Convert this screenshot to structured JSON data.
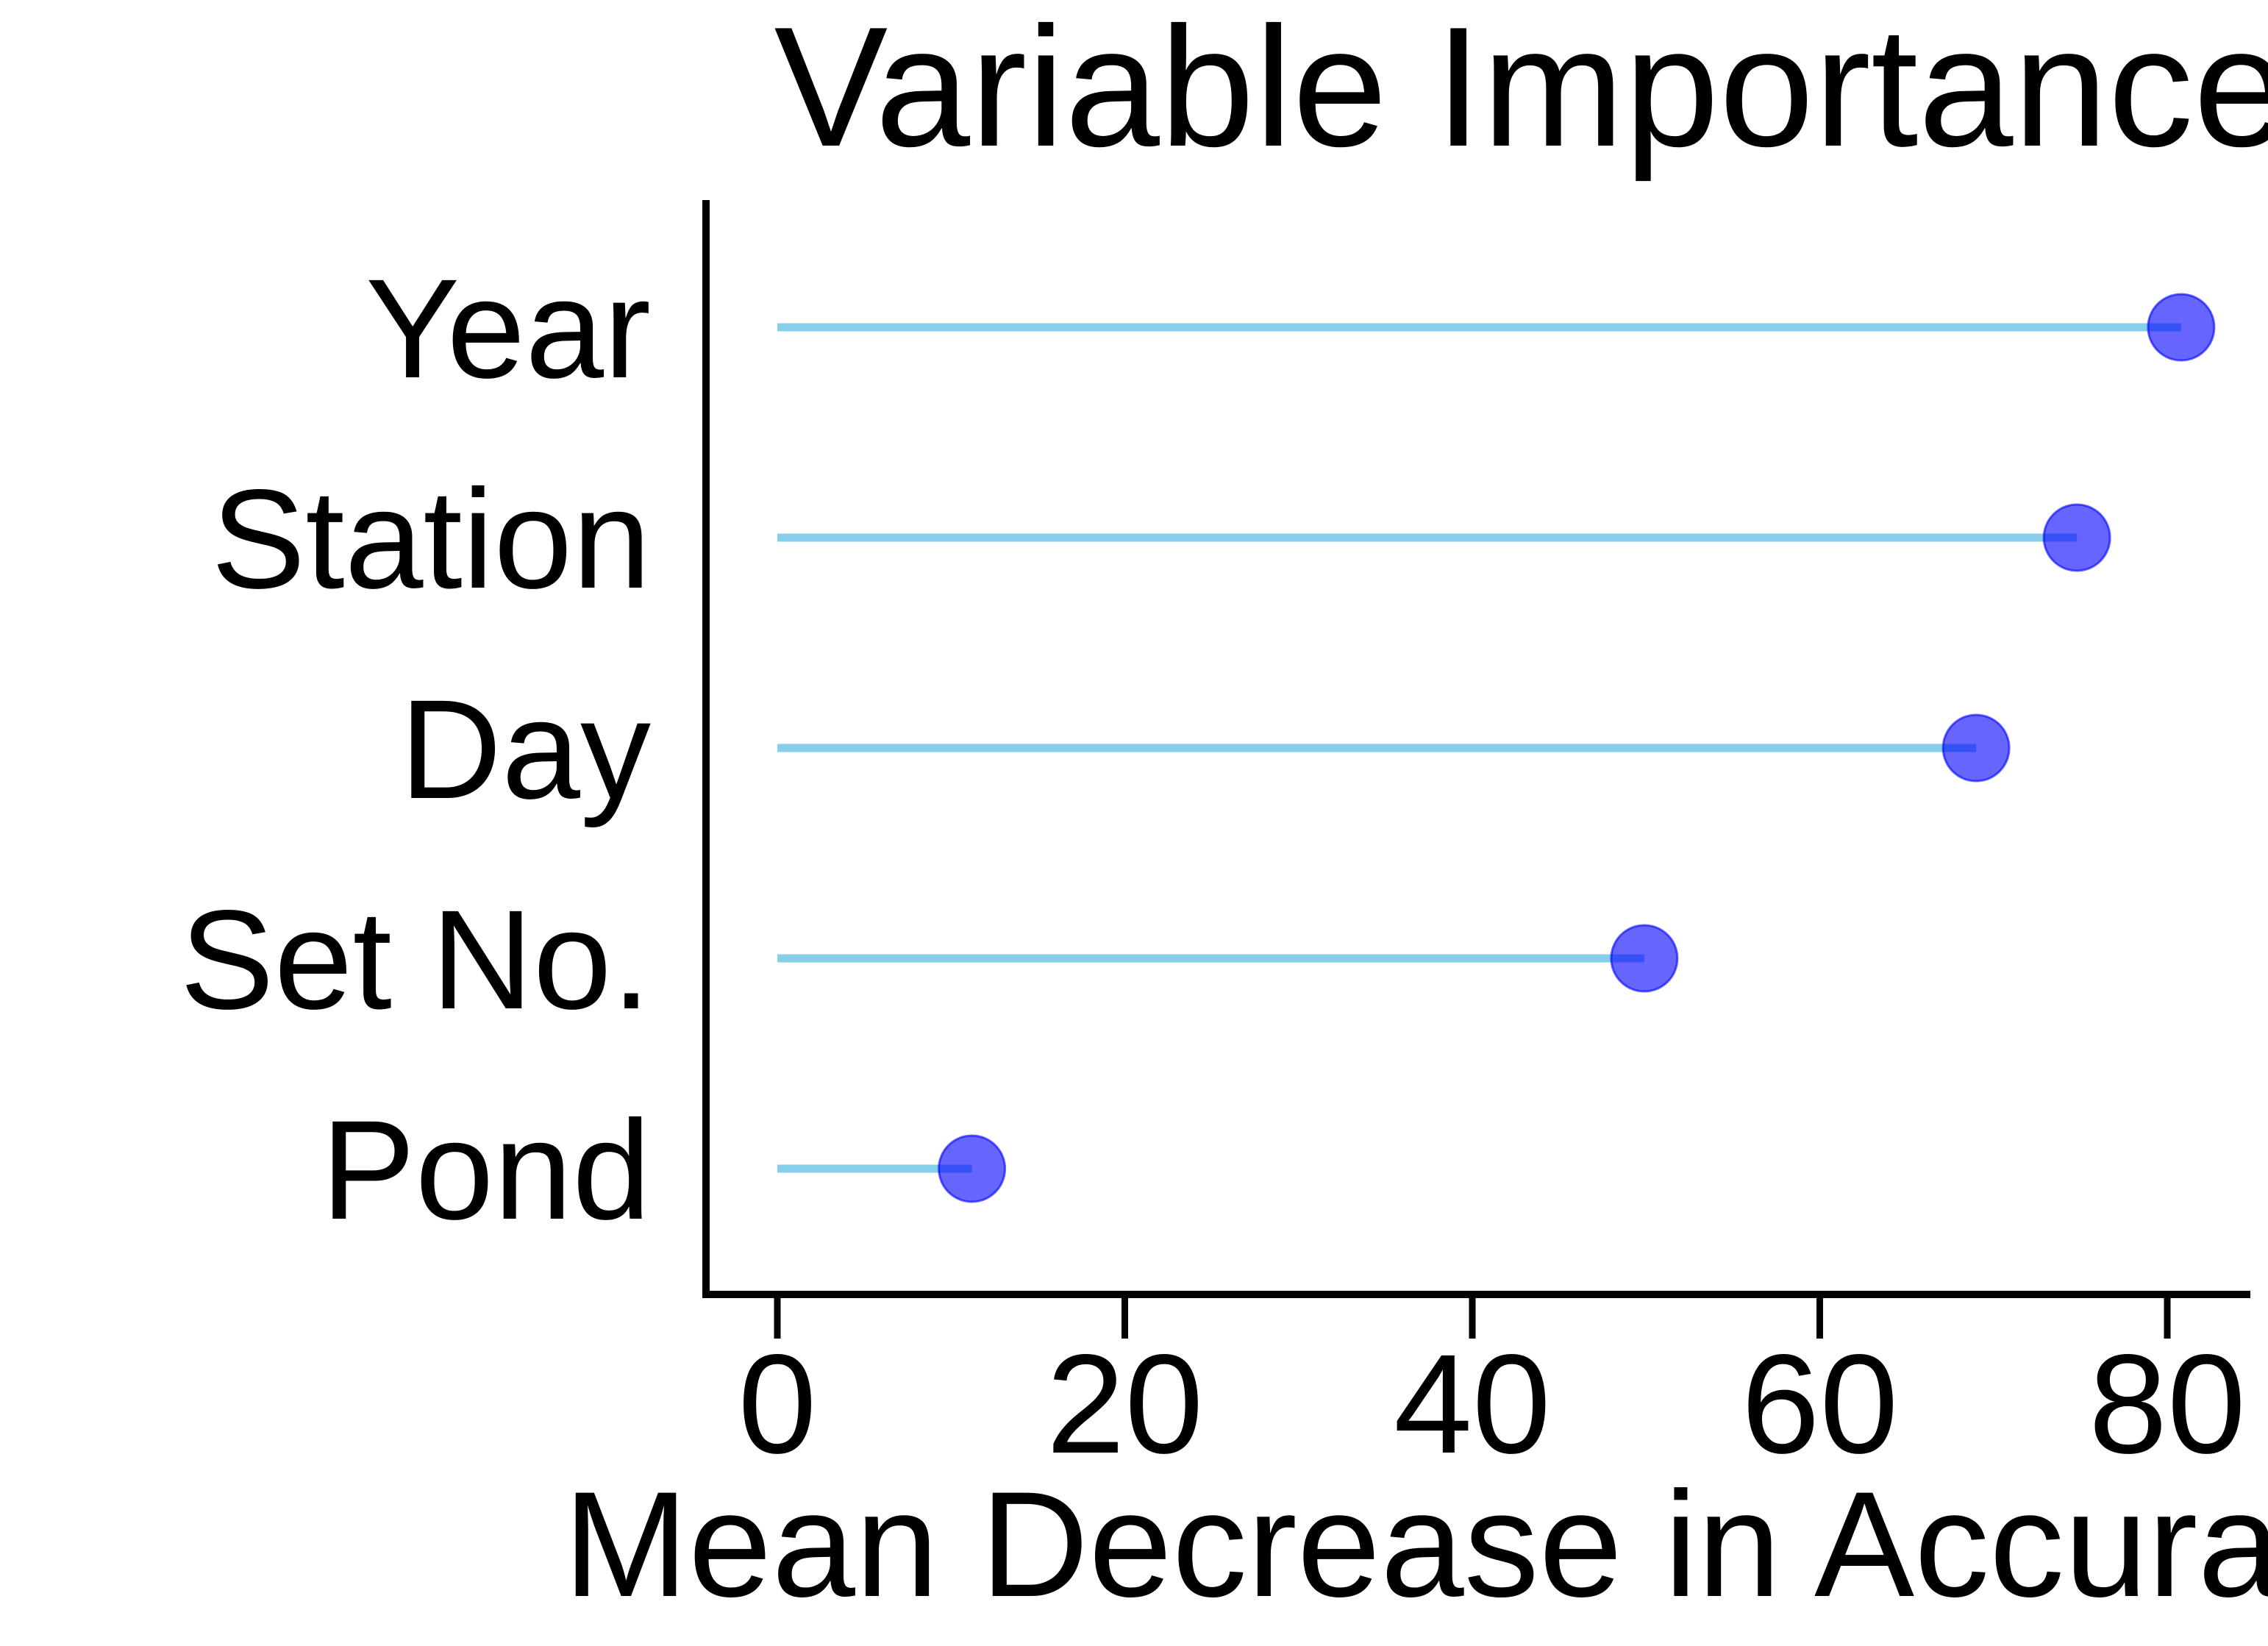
{
  "chart_data": {
    "type": "lollipop",
    "title": "Variable Importance",
    "xlabel": "Mean Decrease in Accuracy",
    "ylabel": "",
    "xlim": [
      0,
      84
    ],
    "xticks": [
      0,
      20,
      40,
      60,
      80
    ],
    "categories": [
      "Year",
      "Station",
      "Day",
      "Set No.",
      "Pond"
    ],
    "values": [
      80.8,
      74.8,
      69.0,
      49.9,
      11.2
    ],
    "grid": false,
    "legend": "none",
    "colors": {
      "stem": "#87ceeb",
      "point_fill": "#0000ff",
      "point_opacity": 0.6,
      "axis": "#000000"
    }
  }
}
